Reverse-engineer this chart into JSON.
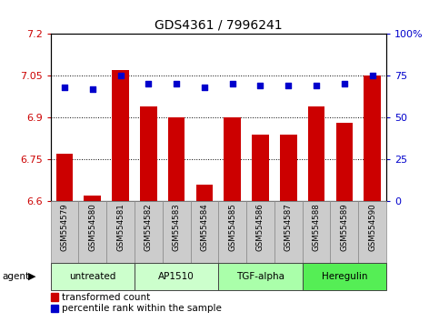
{
  "title": "GDS4361 / 7996241",
  "samples": [
    "GSM554579",
    "GSM554580",
    "GSM554581",
    "GSM554582",
    "GSM554583",
    "GSM554584",
    "GSM554585",
    "GSM554586",
    "GSM554587",
    "GSM554588",
    "GSM554589",
    "GSM554590"
  ],
  "transformed_count": [
    6.77,
    6.62,
    7.07,
    6.94,
    6.9,
    6.66,
    6.9,
    6.84,
    6.84,
    6.94,
    6.88,
    7.05
  ],
  "percentile_rank": [
    68,
    67,
    75,
    70,
    70,
    68,
    70,
    69,
    69,
    69,
    70,
    75
  ],
  "ylim_left": [
    6.6,
    7.2
  ],
  "yticks_left": [
    6.6,
    6.75,
    6.9,
    7.05,
    7.2
  ],
  "ytick_labels_left": [
    "6.6",
    "6.75",
    "6.9",
    "7.05",
    "7.2"
  ],
  "ylim_right": [
    0,
    100
  ],
  "yticks_right": [
    0,
    25,
    50,
    75,
    100
  ],
  "ytick_labels_right": [
    "0",
    "25",
    "50",
    "75",
    "100%"
  ],
  "bar_color": "#cc0000",
  "dot_color": "#0000cc",
  "grid_color": "#000000",
  "agent_groups": [
    {
      "label": "untreated",
      "start": 0,
      "end": 3,
      "color": "#ccffcc"
    },
    {
      "label": "AP1510",
      "start": 3,
      "end": 6,
      "color": "#ccffcc"
    },
    {
      "label": "TGF-alpha",
      "start": 6,
      "end": 9,
      "color": "#aaffaa"
    },
    {
      "label": "Heregulin",
      "start": 9,
      "end": 12,
      "color": "#55ee55"
    }
  ],
  "legend_items": [
    {
      "label": "transformed count",
      "color": "#cc0000"
    },
    {
      "label": "percentile rank within the sample",
      "color": "#0000cc"
    }
  ],
  "title_fontsize": 10,
  "axis_label_color_left": "#cc0000",
  "axis_label_color_right": "#0000cc",
  "sample_cell_color": "#cccccc",
  "sample_cell_edge": "#888888"
}
